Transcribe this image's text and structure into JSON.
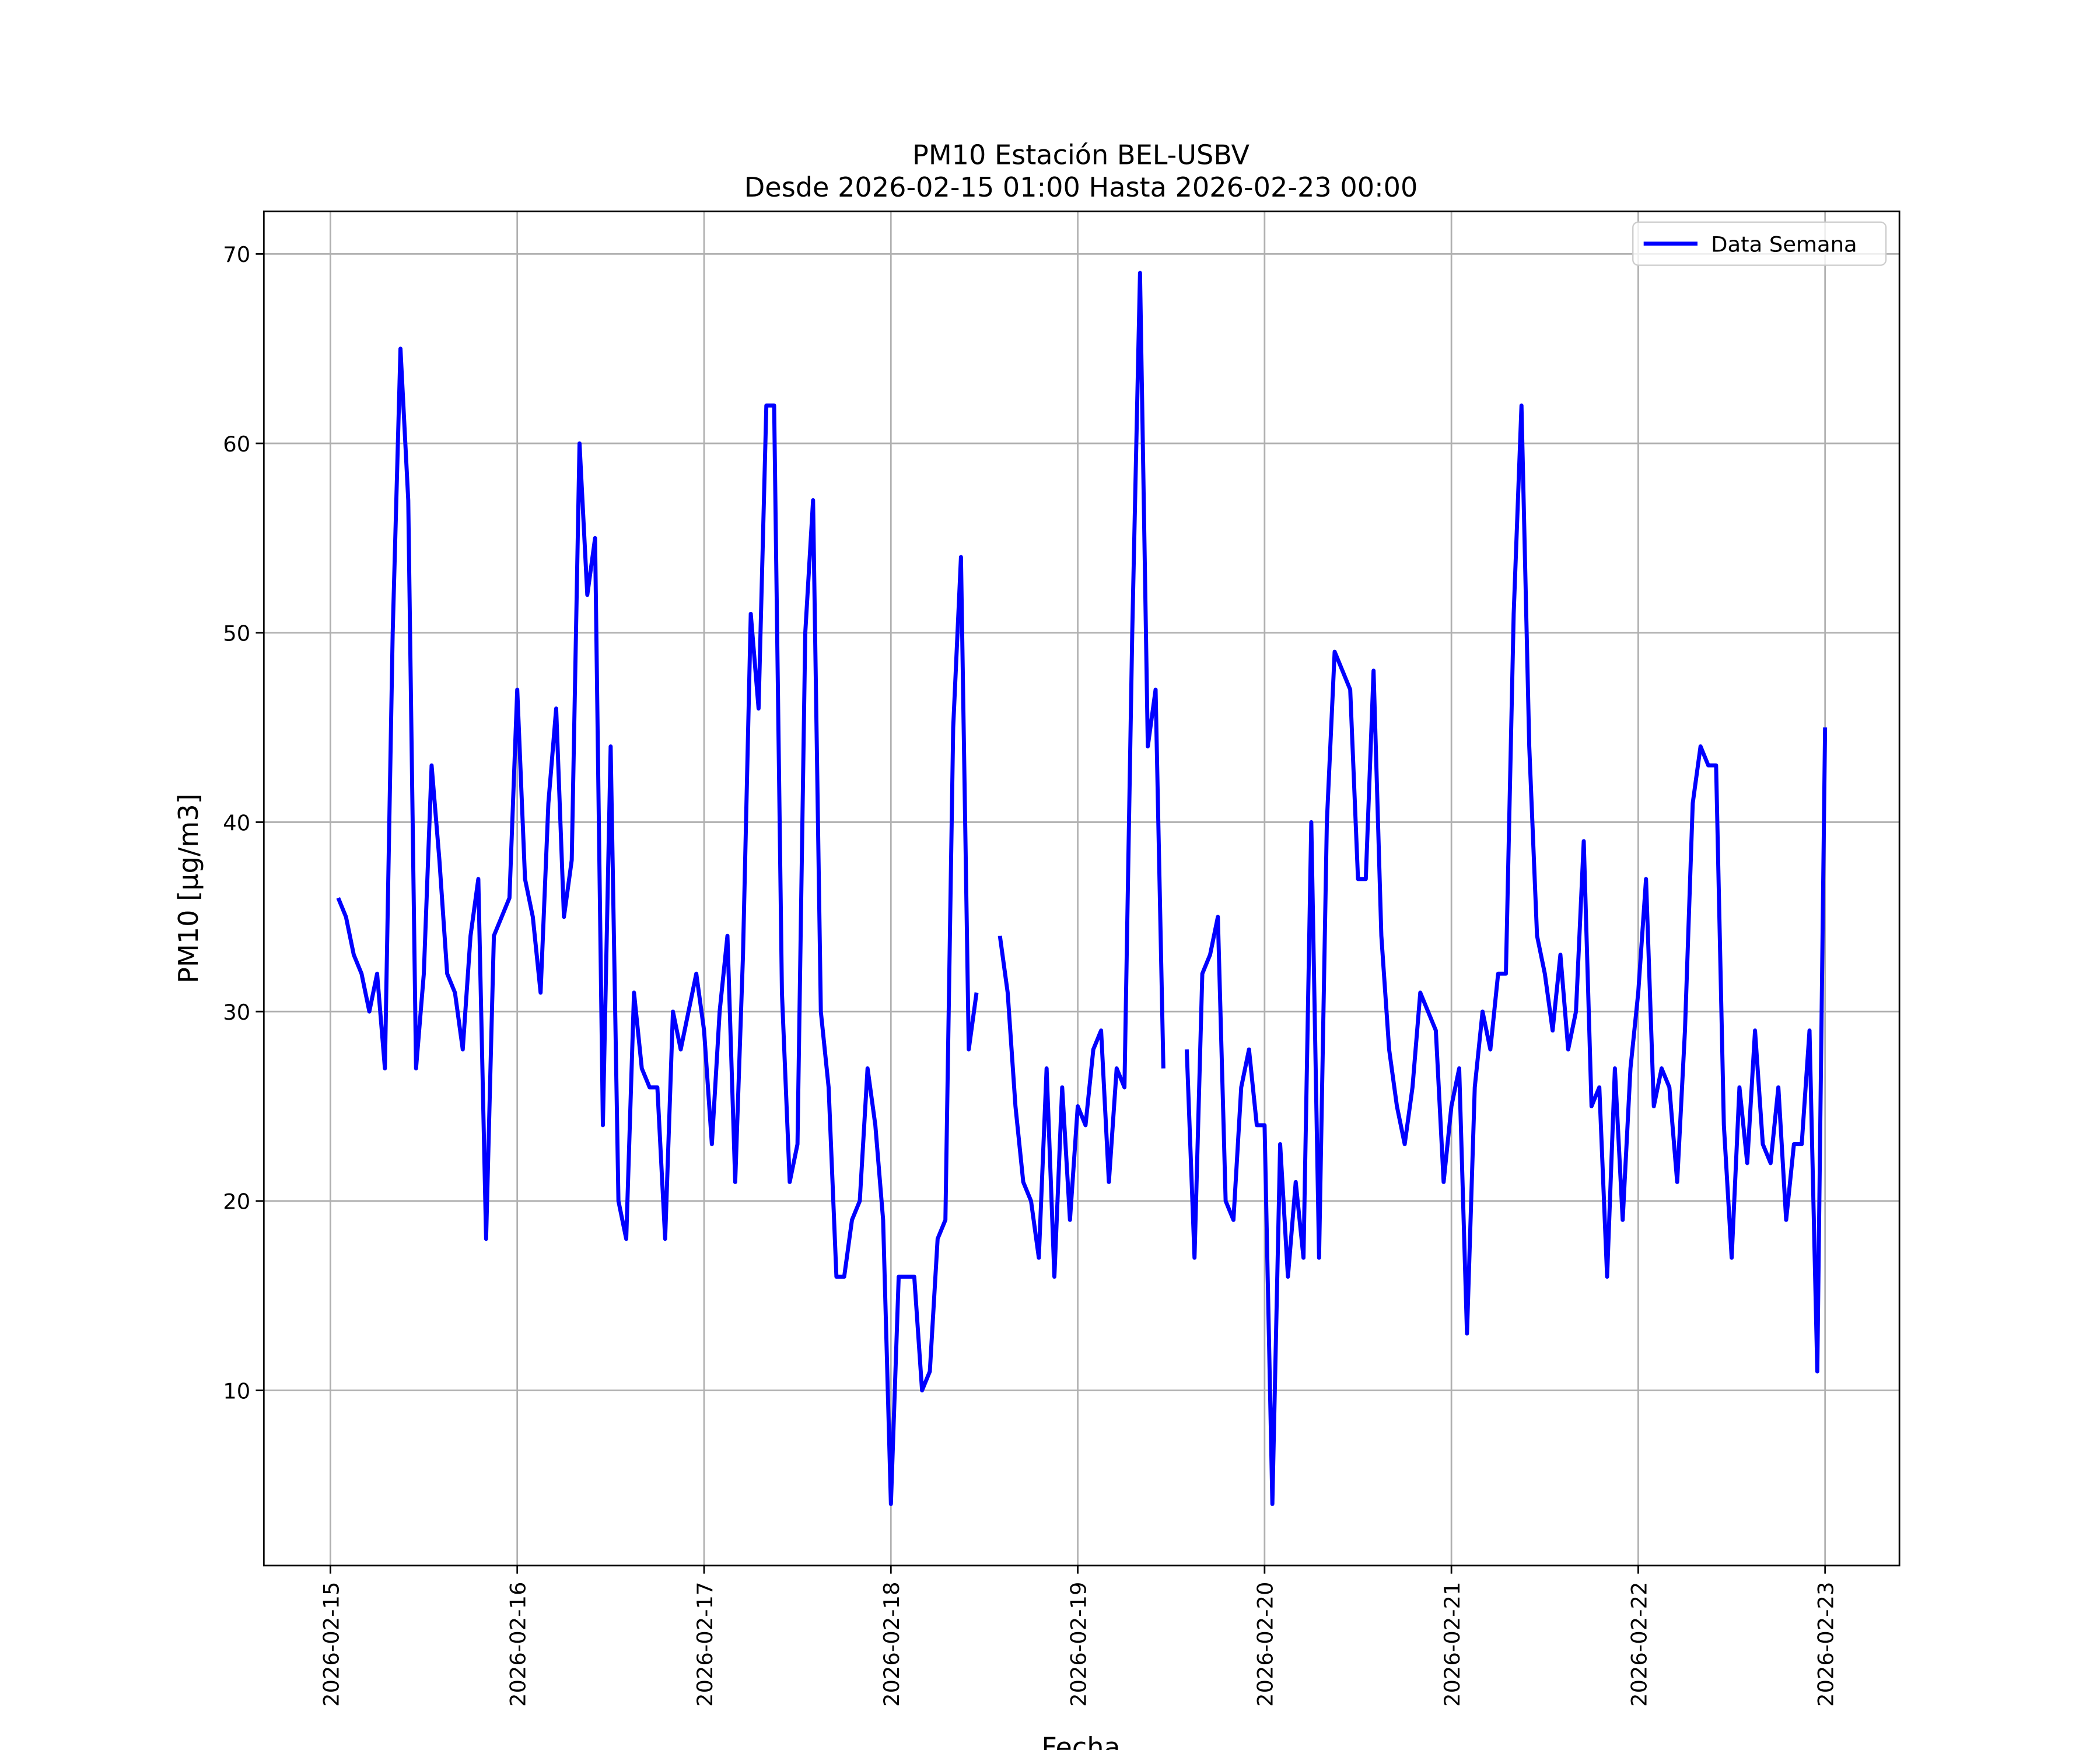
{
  "chart_data": {
    "type": "line",
    "title": "PM10 Estación BEL-USBV",
    "subtitle": "Desde 2026-02-15 01:00 Hasta 2026-02-23 00:00",
    "x_label": "Fecha",
    "y_label": "PM10 [μg/m3]",
    "legend": "upper right",
    "grid": true,
    "x": [
      "2026-02-15 01:00",
      "2026-02-15 02:00",
      "2026-02-15 03:00",
      "2026-02-15 04:00",
      "2026-02-15 05:00",
      "2026-02-15 06:00",
      "2026-02-15 07:00",
      "2026-02-15 08:00",
      "2026-02-15 09:00",
      "2026-02-15 10:00",
      "2026-02-15 11:00",
      "2026-02-15 12:00",
      "2026-02-15 13:00",
      "2026-02-15 14:00",
      "2026-02-15 15:00",
      "2026-02-15 16:00",
      "2026-02-15 17:00",
      "2026-02-15 18:00",
      "2026-02-15 19:00",
      "2026-02-15 20:00",
      "2026-02-15 21:00",
      "2026-02-15 22:00",
      "2026-02-15 23:00",
      "2026-02-16 00:00",
      "2026-02-16 01:00",
      "2026-02-16 02:00",
      "2026-02-16 03:00",
      "2026-02-16 04:00",
      "2026-02-16 05:00",
      "2026-02-16 06:00",
      "2026-02-16 07:00",
      "2026-02-16 08:00",
      "2026-02-16 09:00",
      "2026-02-16 10:00",
      "2026-02-16 11:00",
      "2026-02-16 12:00",
      "2026-02-16 13:00",
      "2026-02-16 14:00",
      "2026-02-16 15:00",
      "2026-02-16 16:00",
      "2026-02-16 17:00",
      "2026-02-16 18:00",
      "2026-02-16 19:00",
      "2026-02-16 20:00",
      "2026-02-16 21:00",
      "2026-02-16 22:00",
      "2026-02-16 23:00",
      "2026-02-17 00:00",
      "2026-02-17 01:00",
      "2026-02-17 02:00",
      "2026-02-17 03:00",
      "2026-02-17 04:00",
      "2026-02-17 05:00",
      "2026-02-17 06:00",
      "2026-02-17 07:00",
      "2026-02-17 08:00",
      "2026-02-17 09:00",
      "2026-02-17 10:00",
      "2026-02-17 11:00",
      "2026-02-17 12:00",
      "2026-02-17 13:00",
      "2026-02-17 14:00",
      "2026-02-17 15:00",
      "2026-02-17 16:00",
      "2026-02-17 17:00",
      "2026-02-17 18:00",
      "2026-02-17 19:00",
      "2026-02-17 20:00",
      "2026-02-17 21:00",
      "2026-02-17 22:00",
      "2026-02-17 23:00",
      "2026-02-18 00:00",
      "2026-02-18 01:00",
      "2026-02-18 02:00",
      "2026-02-18 03:00",
      "2026-02-18 04:00",
      "2026-02-18 05:00",
      "2026-02-18 06:00",
      "2026-02-18 07:00",
      "2026-02-18 08:00",
      "2026-02-18 09:00",
      "2026-02-18 10:00",
      "2026-02-18 11:00",
      "2026-02-18 12:00",
      "2026-02-18 13:00",
      "2026-02-18 14:00",
      "2026-02-18 15:00",
      "2026-02-18 16:00",
      "2026-02-18 17:00",
      "2026-02-18 18:00",
      "2026-02-18 19:00",
      "2026-02-18 20:00",
      "2026-02-18 21:00",
      "2026-02-18 22:00",
      "2026-02-18 23:00",
      "2026-02-19 00:00",
      "2026-02-19 01:00",
      "2026-02-19 02:00",
      "2026-02-19 03:00",
      "2026-02-19 04:00",
      "2026-02-19 05:00",
      "2026-02-19 06:00",
      "2026-02-19 07:00",
      "2026-02-19 08:00",
      "2026-02-19 09:00",
      "2026-02-19 10:00",
      "2026-02-19 11:00",
      "2026-02-19 12:00",
      "2026-02-19 13:00",
      "2026-02-19 14:00",
      "2026-02-19 15:00",
      "2026-02-19 16:00",
      "2026-02-19 17:00",
      "2026-02-19 18:00",
      "2026-02-19 19:00",
      "2026-02-19 20:00",
      "2026-02-19 21:00",
      "2026-02-19 22:00",
      "2026-02-19 23:00",
      "2026-02-20 00:00",
      "2026-02-20 01:00",
      "2026-02-20 02:00",
      "2026-02-20 03:00",
      "2026-02-20 04:00",
      "2026-02-20 05:00",
      "2026-02-20 06:00",
      "2026-02-20 07:00",
      "2026-02-20 08:00",
      "2026-02-20 09:00",
      "2026-02-20 10:00",
      "2026-02-20 11:00",
      "2026-02-20 12:00",
      "2026-02-20 13:00",
      "2026-02-20 14:00",
      "2026-02-20 15:00",
      "2026-02-20 16:00",
      "2026-02-20 17:00",
      "2026-02-20 18:00",
      "2026-02-20 19:00",
      "2026-02-20 20:00",
      "2026-02-20 21:00",
      "2026-02-20 22:00",
      "2026-02-20 23:00",
      "2026-02-21 00:00",
      "2026-02-21 01:00",
      "2026-02-21 02:00",
      "2026-02-21 03:00",
      "2026-02-21 04:00",
      "2026-02-21 05:00",
      "2026-02-21 06:00",
      "2026-02-21 07:00",
      "2026-02-21 08:00",
      "2026-02-21 09:00",
      "2026-02-21 10:00",
      "2026-02-21 11:00",
      "2026-02-21 12:00",
      "2026-02-21 13:00",
      "2026-02-21 14:00",
      "2026-02-21 15:00",
      "2026-02-21 16:00",
      "2026-02-21 17:00",
      "2026-02-21 18:00",
      "2026-02-21 19:00",
      "2026-02-21 20:00",
      "2026-02-21 21:00",
      "2026-02-21 22:00",
      "2026-02-21 23:00",
      "2026-02-22 00:00",
      "2026-02-22 01:00",
      "2026-02-22 02:00",
      "2026-02-22 03:00",
      "2026-02-22 04:00",
      "2026-02-22 05:00",
      "2026-02-22 06:00",
      "2026-02-22 07:00",
      "2026-02-22 08:00",
      "2026-02-22 09:00",
      "2026-02-22 10:00",
      "2026-02-22 11:00",
      "2026-02-22 12:00",
      "2026-02-22 13:00",
      "2026-02-22 14:00",
      "2026-02-22 15:00",
      "2026-02-22 16:00",
      "2026-02-22 17:00",
      "2026-02-22 18:00",
      "2026-02-22 19:00",
      "2026-02-22 20:00",
      "2026-02-22 21:00",
      "2026-02-22 22:00",
      "2026-02-22 23:00",
      "2026-02-23 00:00"
    ],
    "series": [
      {
        "name": "Data Semana",
        "color": "#0000ff",
        "values": [
          36,
          35,
          33,
          32,
          30,
          32,
          27,
          50,
          65,
          57,
          27,
          32,
          43,
          38,
          32,
          31,
          28,
          34,
          37,
          18,
          34,
          35,
          36,
          47,
          37,
          35,
          31,
          41,
          46,
          35,
          38,
          60,
          52,
          55,
          24,
          44,
          20,
          18,
          31,
          27,
          26,
          26,
          18,
          30,
          28,
          30,
          32,
          29,
          23,
          30,
          34,
          21,
          33,
          51,
          46,
          62,
          62,
          31,
          21,
          23,
          50,
          57,
          30,
          26,
          16,
          16,
          19,
          20,
          27,
          24,
          19,
          4,
          16,
          16,
          16,
          10,
          11,
          18,
          19,
          45,
          54,
          28,
          31,
          null,
          null,
          34,
          31,
          25,
          21,
          20,
          17,
          27,
          16,
          26,
          19,
          25,
          24,
          28,
          29,
          21,
          27,
          26,
          50,
          69,
          44,
          47,
          27,
          null,
          null,
          28,
          17,
          32,
          33,
          35,
          20,
          19,
          26,
          28,
          24,
          24,
          4,
          23,
          16,
          21,
          17,
          40,
          17,
          40,
          49,
          48,
          47,
          37,
          37,
          48,
          34,
          28,
          25,
          23,
          26,
          31,
          30,
          29,
          21,
          25,
          27,
          13,
          26,
          30,
          28,
          32,
          32,
          51,
          62,
          44,
          34,
          32,
          29,
          33,
          28,
          30,
          39,
          25,
          26,
          16,
          27,
          19,
          27,
          31,
          37,
          25,
          27,
          26,
          21,
          29,
          41,
          44,
          43,
          43,
          24,
          17,
          26,
          22,
          29,
          23,
          22,
          26,
          19,
          23,
          23,
          29,
          11,
          45
        ]
      }
    ],
    "xlim": [
      "2026-02-14 15:27",
      "2026-02-23 09:33"
    ],
    "xticks": [
      "2026-02-15",
      "2026-02-16",
      "2026-02-17",
      "2026-02-18",
      "2026-02-19",
      "2026-02-20",
      "2026-02-21",
      "2026-02-22",
      "2026-02-23"
    ],
    "ylim": [
      0.75,
      72.25
    ],
    "yticks": [
      10,
      20,
      30,
      40,
      50,
      60,
      70
    ]
  }
}
